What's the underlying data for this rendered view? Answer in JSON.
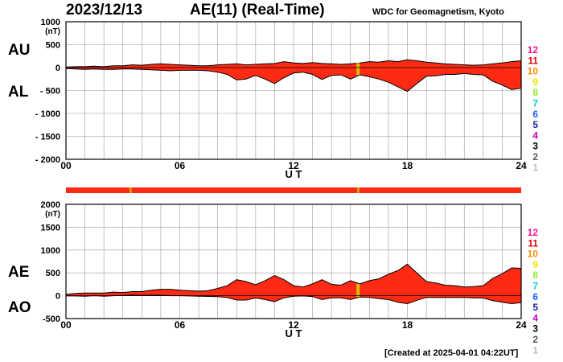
{
  "header": {
    "date": "2023/12/13",
    "title": "AE(11) (Real-Time)",
    "source": "WDC for Geomagnetism, Kyoto"
  },
  "footer": {
    "created": "[Created at 2025-04-01 04:22UT]"
  },
  "labels": {
    "au": "AU",
    "al": "AL",
    "ae": "AE",
    "ao": "AO"
  },
  "station_scale": {
    "labels": [
      "12",
      "11",
      "10",
      "9",
      "8",
      "7",
      "6",
      "5",
      "4",
      "3",
      "2",
      "1"
    ],
    "colors": [
      "#ff1493",
      "#e00000",
      "#ff8c00",
      "#e8e800",
      "#90ee30",
      "#00d0d0",
      "#2060ff",
      "#2020a0",
      "#c000c0",
      "#000000",
      "#555555",
      "#bbbbbb"
    ]
  },
  "colors": {
    "fill": "#ff2a14",
    "band": "#ff2a14",
    "band_mark": "#c8b400",
    "marker": "#d8c000",
    "grid": "#999999"
  },
  "chart_data": [
    {
      "type": "area",
      "name": "AU/AL",
      "unit_label": "(nT)",
      "xlabel": "U T",
      "x_ticks": [
        "00",
        "06",
        "12",
        "18",
        "24"
      ],
      "x_range": [
        0,
        24
      ],
      "y_ticks": [
        "1000",
        "500",
        "0",
        "- 500",
        "- 1000",
        "- 1500",
        "- 2000"
      ],
      "ylim": [
        -2000,
        1000
      ],
      "x": [
        0,
        0.5,
        1,
        1.5,
        2,
        2.5,
        3,
        3.5,
        4,
        4.5,
        5,
        5.5,
        6,
        6.5,
        7,
        7.5,
        8,
        8.5,
        9,
        9.5,
        10,
        10.5,
        11,
        11.5,
        12,
        12.5,
        13,
        13.5,
        14,
        14.5,
        15,
        15.5,
        16,
        16.5,
        17,
        17.5,
        18,
        18.5,
        19,
        19.5,
        20,
        20.5,
        21,
        21.5,
        22,
        22.5,
        23,
        23.5,
        24
      ],
      "series": [
        {
          "name": "AU",
          "values": [
            10,
            20,
            20,
            30,
            20,
            40,
            40,
            60,
            50,
            70,
            80,
            70,
            60,
            50,
            40,
            40,
            60,
            70,
            80,
            60,
            70,
            80,
            90,
            130,
            100,
            90,
            110,
            90,
            80,
            70,
            80,
            100,
            130,
            120,
            150,
            130,
            170,
            150,
            120,
            100,
            80,
            70,
            60,
            50,
            60,
            80,
            100,
            130,
            150
          ]
        },
        {
          "name": "AL",
          "values": [
            -20,
            -30,
            -40,
            -30,
            -40,
            -40,
            -30,
            -30,
            -40,
            -50,
            -60,
            -70,
            -60,
            -60,
            -60,
            -70,
            -100,
            -150,
            -270,
            -250,
            -170,
            -250,
            -350,
            -220,
            -120,
            -100,
            -150,
            -260,
            -170,
            -160,
            -250,
            -160,
            -200,
            -250,
            -320,
            -420,
            -520,
            -350,
            -190,
            -180,
            -150,
            -150,
            -130,
            -150,
            -160,
            -300,
            -380,
            -480,
            -450
          ]
        }
      ],
      "highlight_x": 15.4
    },
    {
      "type": "area",
      "name": "AE/AO",
      "unit_label": "(nT)",
      "xlabel": "U T",
      "x_ticks": [
        "00",
        "06",
        "12",
        "18",
        "24"
      ],
      "x_range": [
        0,
        24
      ],
      "y_ticks": [
        "2000",
        "1500",
        "1000",
        "500",
        "0",
        "-500"
      ],
      "ylim": [
        -500,
        2000
      ],
      "x": [
        0,
        0.5,
        1,
        1.5,
        2,
        2.5,
        3,
        3.5,
        4,
        4.5,
        5,
        5.5,
        6,
        6.5,
        7,
        7.5,
        8,
        8.5,
        9,
        9.5,
        10,
        10.5,
        11,
        11.5,
        12,
        12.5,
        13,
        13.5,
        14,
        14.5,
        15,
        15.5,
        16,
        16.5,
        17,
        17.5,
        18,
        18.5,
        19,
        19.5,
        20,
        20.5,
        21,
        21.5,
        22,
        22.5,
        23,
        23.5,
        24
      ],
      "series": [
        {
          "name": "AE",
          "values": [
            30,
            50,
            60,
            60,
            60,
            80,
            70,
            90,
            90,
            120,
            140,
            140,
            120,
            110,
            100,
            110,
            160,
            220,
            350,
            310,
            240,
            330,
            440,
            350,
            220,
            190,
            260,
            350,
            250,
            230,
            330,
            260,
            330,
            370,
            470,
            550,
            690,
            500,
            310,
            280,
            230,
            220,
            190,
            200,
            220,
            380,
            480,
            610,
            600
          ]
        },
        {
          "name": "AO",
          "values": [
            -5,
            -5,
            -10,
            0,
            -10,
            0,
            5,
            15,
            5,
            10,
            10,
            0,
            0,
            -5,
            -10,
            -15,
            -20,
            -40,
            -95,
            -95,
            -50,
            -85,
            -130,
            -45,
            -10,
            -5,
            -20,
            -85,
            -45,
            -45,
            -85,
            -30,
            -35,
            -65,
            -85,
            -145,
            -175,
            -100,
            -35,
            -40,
            -35,
            -40,
            -35,
            -50,
            -50,
            -110,
            -140,
            -175,
            -150
          ]
        }
      ],
      "highlight_x": 15.4
    }
  ],
  "status_band": {
    "x_range": [
      0,
      24
    ],
    "marks": [
      3.4,
      15.4
    ]
  }
}
